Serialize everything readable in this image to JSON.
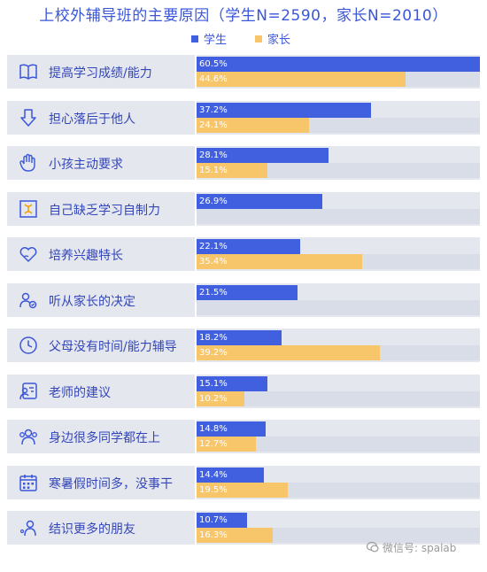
{
  "title": "上校外辅导班的主要原因（学生N=2590，家长N=2010）",
  "colors": {
    "student": "#4060e0",
    "parent": "#f7c56a",
    "accent": "#3a56d9"
  },
  "chart_data": {
    "type": "bar",
    "orientation": "horizontal",
    "title": "上校外辅导班的主要原因（学生N=2590，家长N=2010）",
    "xlim": [
      0,
      60.5
    ],
    "legend_position": "top-center",
    "categories": [
      "提高学习成绩/能力",
      "担心落后于他人",
      "小孩主动要求",
      "自己缺乏学习自制力",
      "培养兴趣特长",
      "听从家长的决定",
      "父母没有时间/能力辅导",
      "老师的建议",
      "身边很多同学都在上",
      "寒暑假时间多，没事干",
      "结识更多的朋友"
    ],
    "icons": [
      "book-icon",
      "down-arrow-icon",
      "hand-icon",
      "self-discipline-icon",
      "heart-icon",
      "parent-child-icon",
      "clock-icon",
      "teacher-icon",
      "group-icon",
      "calendar-icon",
      "friends-icon"
    ],
    "series": [
      {
        "name": "学生",
        "color": "#4060e0",
        "values": [
          60.5,
          37.2,
          28.1,
          26.9,
          22.1,
          21.5,
          18.2,
          15.1,
          14.8,
          14.4,
          10.7
        ],
        "labels": [
          "60.5%",
          "37.2%",
          "28.1%",
          "26.9%",
          "22.1%",
          "21.5%",
          "18.2%",
          "15.1%",
          "14.8%",
          "14.4%",
          "10.7%"
        ]
      },
      {
        "name": "家长",
        "color": "#f7c56a",
        "values": [
          44.6,
          24.1,
          15.1,
          null,
          35.4,
          null,
          39.2,
          10.2,
          12.7,
          19.5,
          16.3
        ],
        "labels": [
          "44.6%",
          "24.1%",
          "15.1%",
          null,
          "35.4%",
          null,
          "39.2%",
          "10.2%",
          "12.7%",
          "19.5%",
          "16.3%"
        ]
      }
    ]
  },
  "watermark": "微信号: spalab"
}
